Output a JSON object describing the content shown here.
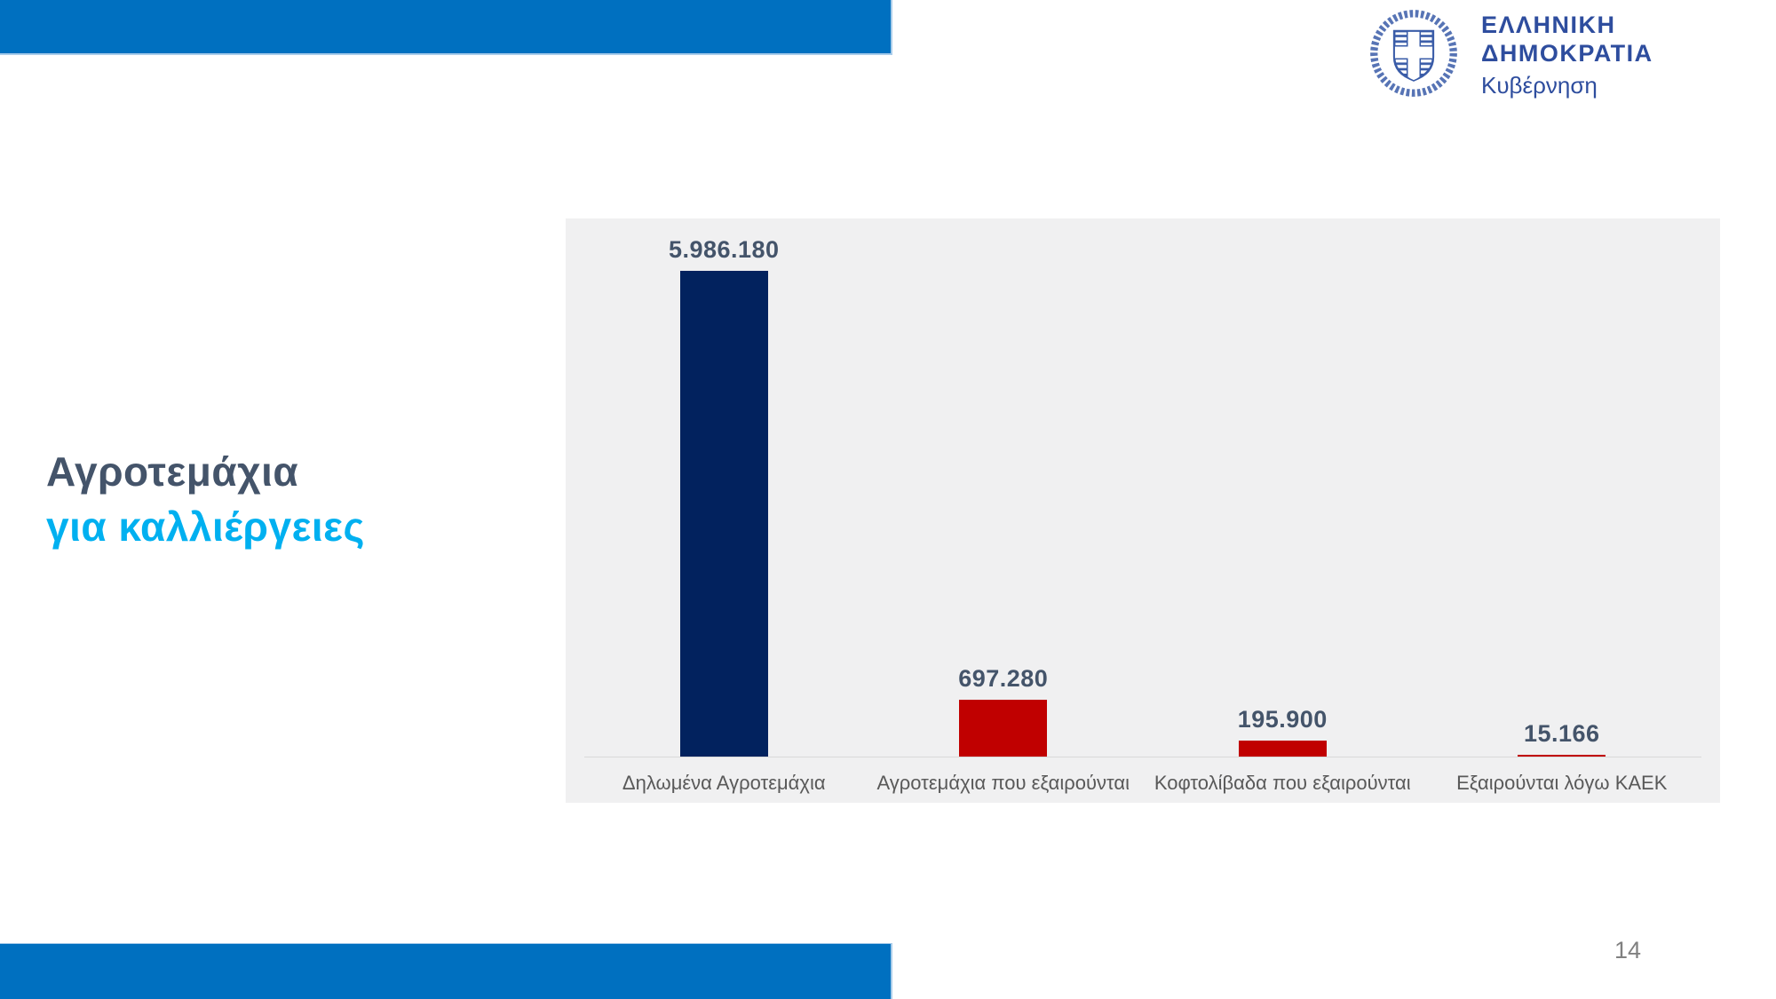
{
  "slide": {
    "title_line1": "Αγροτεμάχια",
    "title_line2": "για καλλιέργειες",
    "page_number": "14"
  },
  "logo": {
    "org_name": "ΕΛΛΗΝΙΚΗ ΔΗΜΟΚΡΑΤΙΑ",
    "sub_name": "Κυβέρνηση",
    "emblem_icon": "greek-republic-coat-of-arms-icon"
  },
  "colors": {
    "band_blue": "#0070C0",
    "band_edge_light_blue": "#A9CCEA",
    "title_dark_slate": "#44546A",
    "title_cyan": "#00B0F0",
    "bar_navy": "#02225E",
    "bar_red": "#C00000",
    "chart_background": "#F0F0F1",
    "axis_line": "#D9D9D9",
    "category_label_gray": "#595959",
    "page_number_gray": "#808080",
    "logo_blue": "#2E4D9E"
  },
  "chart_data": {
    "type": "bar",
    "categories": [
      "Δηλωμένα Αγροτεμάχια",
      "Αγροτεμάχια που εξαιρούνται",
      "Κοφτολίβαδα που εξαιρούνται",
      "Εξαιρούνται λόγω ΚΑΕΚ"
    ],
    "values": [
      5986180,
      697280,
      195900,
      15166
    ],
    "value_labels": [
      "5.986.180",
      "697.280",
      "195.900",
      "15.166"
    ],
    "bar_colors": [
      "#02225E",
      "#C00000",
      "#C00000",
      "#C00000"
    ],
    "title": "",
    "xlabel": "",
    "ylabel": "",
    "ylim": [
      0,
      5986180
    ],
    "grid": false,
    "legend": false,
    "data_labels": true,
    "background": "#F0F0F1"
  }
}
